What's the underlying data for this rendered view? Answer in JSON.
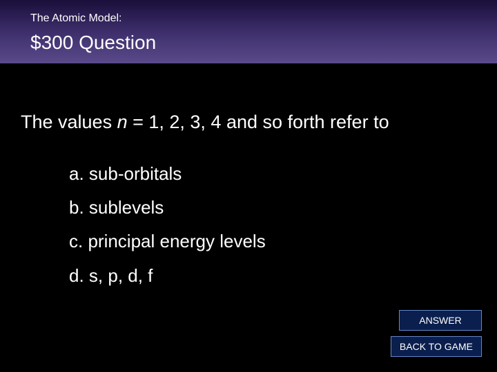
{
  "header": {
    "category": "The Atomic Model:",
    "price_question": "$300 Question"
  },
  "question": {
    "prefix": "The values ",
    "variable": "n",
    "suffix": " = 1, 2, 3, 4 and so forth refer to"
  },
  "options": {
    "a": "a. sub-orbitals",
    "b": "b. sublevels",
    "c": "c. principal energy levels",
    "d": "d. s, p, d, f"
  },
  "buttons": {
    "answer": "ANSWER",
    "back": "BACK TO GAME"
  },
  "colors": {
    "background": "#000000",
    "header_gradient_top": "#1a0e3a",
    "header_gradient_mid": "#3d2e6b",
    "header_gradient_bottom": "#5a4a8a",
    "text": "#ffffff",
    "button_bg": "#0a1f4d",
    "button_border": "#6688cc"
  },
  "typography": {
    "category_fontsize": 16,
    "price_fontsize": 28,
    "question_fontsize": 27,
    "option_fontsize": 26,
    "button_fontsize": 14
  }
}
